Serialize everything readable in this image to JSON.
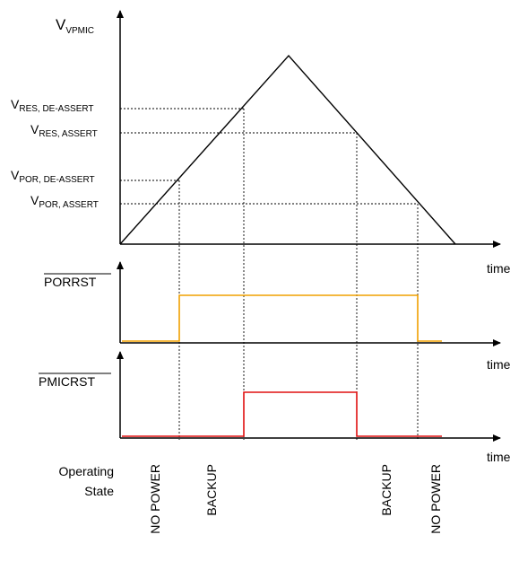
{
  "y_label": {
    "main": "V",
    "sub": "VPMIC"
  },
  "thresholds": [
    {
      "main": "V",
      "sub": "RES, DE-ASSERT"
    },
    {
      "main": "V",
      "sub": "RES, ASSERT"
    },
    {
      "main": "V",
      "sub": "POR, DE-ASSERT"
    },
    {
      "main": "V",
      "sub": "POR, ASSERT"
    }
  ],
  "time_label": "time",
  "signals": {
    "porrst": "PORRST",
    "pmicrst": "PMICRST"
  },
  "operating_state": {
    "line1": "Operating",
    "line2": "State",
    "states": [
      "NO POWER",
      "BACKUP",
      "BACKUP",
      "NO POWER"
    ]
  },
  "colors": {
    "porrst": "#f0a000",
    "pmicrst": "#e01010",
    "ink": "#000000"
  }
}
